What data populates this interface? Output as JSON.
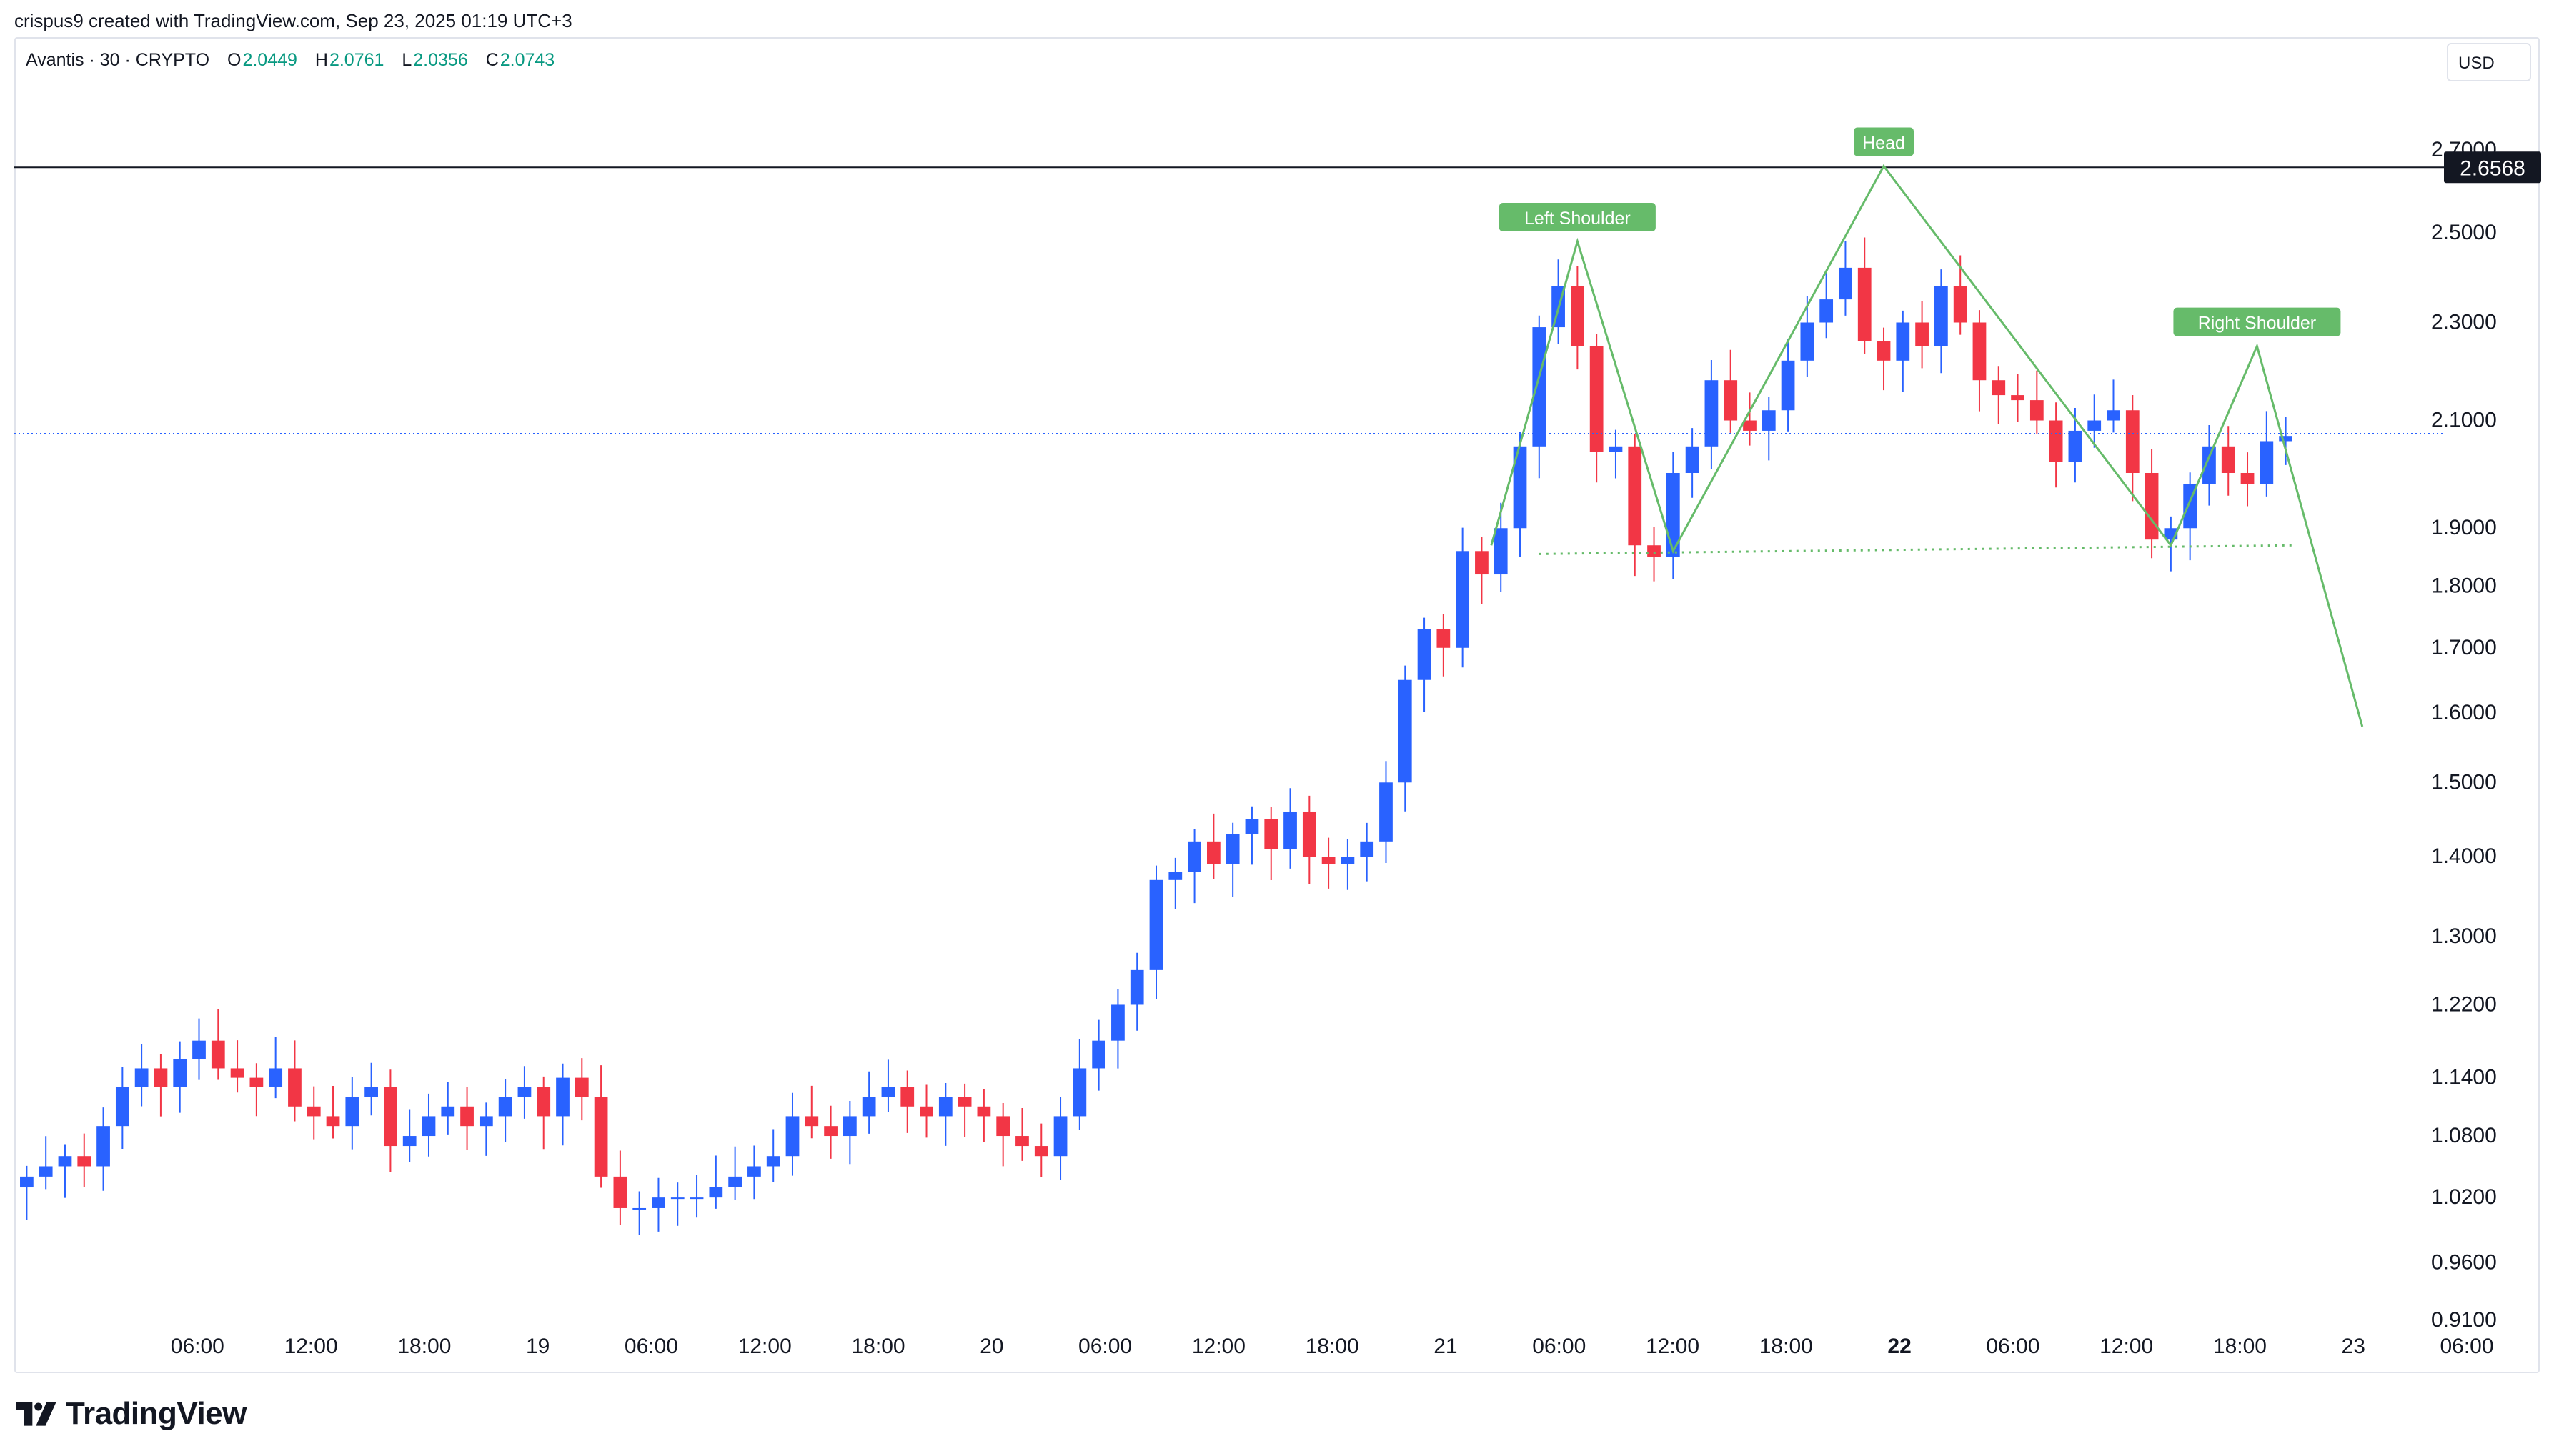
{
  "header": {
    "credit": "crispus9 created with TradingView.com, Sep 23, 2025 01:19 UTC+3"
  },
  "symbol": {
    "name": "Avantis · 30 · CRYPTO",
    "open_label": "O",
    "open": "2.0449",
    "high_label": "H",
    "high": "2.0761",
    "low_label": "L",
    "low": "2.0356",
    "close_label": "C",
    "close": "2.0743"
  },
  "currency": "USD",
  "brand": {
    "name": "TradingView"
  },
  "colors": {
    "up": "#2962ff",
    "down": "#f23645",
    "pattern": "#66bb6a",
    "resistance": "#131722",
    "last_price": "#2962ff"
  },
  "chart_data": {
    "type": "candlestick",
    "title": "",
    "xlabel": "",
    "ylabel": "",
    "scale": "log",
    "ylim": [
      0.91,
      2.75
    ],
    "y_ticks": [
      "2.7000",
      "2.5000",
      "2.3000",
      "2.1000",
      "1.9000",
      "1.8000",
      "1.7000",
      "1.6000",
      "1.5000",
      "1.4000",
      "1.3000",
      "1.2200",
      "1.1400",
      "1.0800",
      "1.0200",
      "0.9600",
      "0.9100"
    ],
    "x_ticks": [
      {
        "label": "06:00",
        "t": 5,
        "bold": false
      },
      {
        "label": "12:00",
        "t": 11,
        "bold": false
      },
      {
        "label": "18:00",
        "t": 17,
        "bold": false
      },
      {
        "label": "19",
        "t": 23,
        "bold": false
      },
      {
        "label": "06:00",
        "t": 29,
        "bold": false
      },
      {
        "label": "12:00",
        "t": 35,
        "bold": false
      },
      {
        "label": "18:00",
        "t": 41,
        "bold": false
      },
      {
        "label": "20",
        "t": 47,
        "bold": false
      },
      {
        "label": "06:00",
        "t": 53,
        "bold": false
      },
      {
        "label": "12:00",
        "t": 59,
        "bold": false
      },
      {
        "label": "18:00",
        "t": 65,
        "bold": false
      },
      {
        "label": "21",
        "t": 71,
        "bold": false
      },
      {
        "label": "06:00",
        "t": 77,
        "bold": false
      },
      {
        "label": "12:00",
        "t": 83,
        "bold": false
      },
      {
        "label": "18:00",
        "t": 89,
        "bold": false
      },
      {
        "label": "22",
        "t": 95,
        "bold": true
      },
      {
        "label": "06:00",
        "t": 101,
        "bold": false
      },
      {
        "label": "12:00",
        "t": 107,
        "bold": false
      },
      {
        "label": "18:00",
        "t": 113,
        "bold": false
      },
      {
        "label": "23",
        "t": 119,
        "bold": false
      },
      {
        "label": "06:00",
        "t": 125,
        "bold": false
      }
    ],
    "x_range": [
      0,
      132
    ],
    "candles_hourly_close": [
      1.04,
      1.05,
      1.06,
      1.05,
      1.09,
      1.13,
      1.15,
      1.13,
      1.16,
      1.18,
      1.15,
      1.14,
      1.13,
      1.15,
      1.11,
      1.1,
      1.09,
      1.12,
      1.13,
      1.07,
      1.08,
      1.1,
      1.11,
      1.09,
      1.1,
      1.12,
      1.13,
      1.1,
      1.14,
      1.12,
      1.04,
      1.01,
      1.01,
      1.02,
      1.02,
      1.02,
      1.03,
      1.04,
      1.05,
      1.06,
      1.1,
      1.09,
      1.08,
      1.1,
      1.12,
      1.13,
      1.11,
      1.1,
      1.12,
      1.11,
      1.1,
      1.08,
      1.07,
      1.06,
      1.1,
      1.15,
      1.18,
      1.22,
      1.26,
      1.37,
      1.38,
      1.42,
      1.39,
      1.43,
      1.45,
      1.41,
      1.46,
      1.4,
      1.39,
      1.4,
      1.42,
      1.5,
      1.65,
      1.73,
      1.7,
      1.86,
      1.82,
      1.9,
      2.05,
      2.29,
      2.38,
      2.25,
      2.04,
      2.05,
      1.87,
      1.85,
      2.0,
      2.05,
      2.18,
      2.1,
      2.08,
      2.12,
      2.22,
      2.3,
      2.35,
      2.42,
      2.26,
      2.22,
      2.3,
      2.25,
      2.38,
      2.3,
      2.18,
      2.15,
      2.14,
      2.1,
      2.02,
      2.08,
      2.1,
      2.12,
      2.0,
      1.88,
      1.9,
      1.98,
      2.05,
      2.0,
      1.98,
      2.06,
      2.07
    ],
    "resistance": {
      "value": 2.6568,
      "label": "2.6568"
    },
    "last_price": 2.0743,
    "pattern": {
      "type": "head-and-shoulders",
      "points": [
        {
          "t": 76.5,
          "y": 1.87
        },
        {
          "t": 81,
          "y": 2.48
        },
        {
          "t": 86,
          "y": 1.86
        },
        {
          "t": 97,
          "y": 2.66
        },
        {
          "t": 112,
          "y": 1.87
        },
        {
          "t": 116.5,
          "y": 2.25
        },
        {
          "t": 122,
          "y": 1.58
        }
      ],
      "neckline": [
        {
          "t": 79,
          "y": 1.855
        },
        {
          "t": 118.5,
          "y": 1.87
        }
      ],
      "labels": [
        {
          "text": "Left Shoulder",
          "t": 81,
          "y": 2.48
        },
        {
          "text": "Head",
          "t": 97,
          "y": 2.66
        },
        {
          "text": "Right Shoulder",
          "t": 116.5,
          "y": 2.25
        }
      ]
    }
  }
}
